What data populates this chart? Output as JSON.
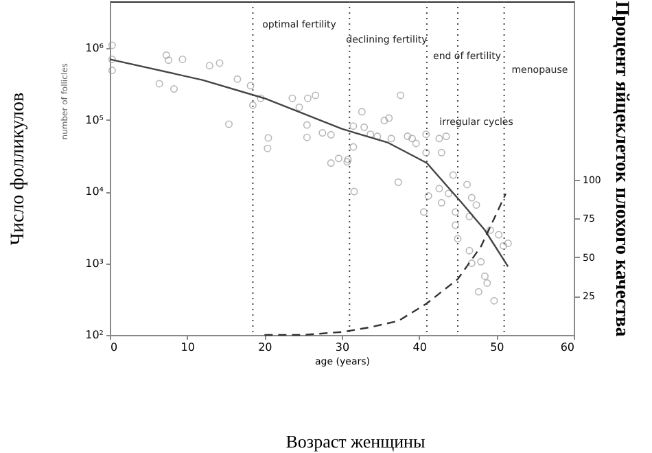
{
  "chart_data": {
    "type": "scatter",
    "xlabel": "age (years)",
    "ylabel": "Число фолликулов",
    "y2label": "Процент яйцеклеток плохого качества",
    "xlim": [
      0,
      60
    ],
    "xticks": [
      0,
      10,
      20,
      30,
      40,
      50,
      60
    ],
    "ylim": [
      100,
      4500000
    ],
    "yticks": [
      {
        "value": 100,
        "label": "10²"
      },
      {
        "value": 1000,
        "label": "10³"
      },
      {
        "value": 10000,
        "label": "10⁴"
      },
      {
        "value": 100000,
        "label": "10⁵"
      },
      {
        "value": 1000000,
        "label": "10⁶"
      }
    ],
    "y2lim": [
      0,
      215
    ],
    "y2ticks": [
      25,
      50,
      75,
      100
    ],
    "log": "y",
    "grid": false,
    "series": [
      {
        "color": "#999999",
        "marker": "circle",
        "x": [
          0.3,
          0.3,
          0.3,
          7.3,
          9.4,
          7.6,
          6.4,
          8.3,
          12.9,
          14.2,
          16.5,
          15.4,
          18.2,
          18.5,
          19.5,
          20.5,
          20.4,
          23.6,
          24.5,
          25.6,
          26.6,
          25.5,
          25.5,
          27.5,
          28.6,
          28.6,
          29.6,
          30.7,
          31.5,
          31.5,
          31.6,
          30.8,
          32.6,
          32.9,
          33.7,
          34.6,
          35.5,
          36.1,
          36.4,
          37.6,
          38.5,
          39.1,
          39.6,
          37.3,
          40.9,
          40.9,
          41.2,
          40.6,
          42.6,
          42.9,
          43.5,
          42.6,
          42.9,
          43.8,
          44.4,
          44.7,
          44.7,
          45,
          46.2,
          46.8,
          47.4,
          46.5,
          46.5,
          46.8,
          48,
          47.7,
          48.5,
          49.7,
          48.8,
          49.2,
          50.3,
          50.9,
          51.5
        ],
        "values": [
          1100000,
          700000,
          490000,
          800000,
          700000,
          680000,
          320000,
          270000,
          570000,
          620000,
          370000,
          87000,
          300000,
          160000,
          200000,
          56000,
          40000,
          200000,
          150000,
          200000,
          220000,
          85000,
          57000,
          66000,
          62000,
          25000,
          29000,
          26000,
          42000,
          82000,
          10000,
          28000,
          130000,
          79000,
          63000,
          59000,
          98000,
          106000,
          55000,
          220000,
          59000,
          55000,
          47000,
          13500,
          63000,
          35000,
          8700,
          5200,
          55000,
          35000,
          59000,
          11000,
          7000,
          9400,
          17000,
          5200,
          3400,
          2200,
          12500,
          8200,
          6500,
          4500,
          1500,
          1000,
          1050,
          400,
          660,
          300,
          530,
          2900,
          2500,
          1750,
          1900
        ]
      },
      {
        "type": "line",
        "color": "#444444",
        "marker": "none",
        "line_style": "solid",
        "x": [
          0,
          12,
          20,
          30,
          36,
          41,
          45.5,
          48.5,
          51.5
        ],
        "values": [
          700000,
          360000,
          200000,
          75000,
          48000,
          25000,
          7000,
          2900,
          900
        ]
      },
      {
        "type": "line",
        "axis": "y2",
        "color": "#333333",
        "marker": "none",
        "line_style": "dashed",
        "x": [
          20,
          25,
          30.2,
          33.7,
          37.3,
          40.9,
          45,
          48,
          49.7,
          51.2
        ],
        "values": [
          0,
          0,
          2,
          5,
          9,
          20,
          36,
          57,
          75,
          91
        ]
      }
    ],
    "ref_lines": [
      {
        "axis": "x",
        "value": 18.5,
        "color": "#444444",
        "line_style": "dotted"
      },
      {
        "axis": "x",
        "value": 31,
        "color": "#444444",
        "line_style": "dotted"
      },
      {
        "axis": "x",
        "value": 41,
        "color": "#444444",
        "line_style": "dotted"
      },
      {
        "axis": "x",
        "value": 45,
        "color": "#444444",
        "line_style": "dotted"
      },
      {
        "axis": "x",
        "value": 51,
        "color": "#444444",
        "line_style": "dotted"
      }
    ],
    "annotations": [
      "optimal fertility",
      "declining fertility",
      "end of fertility",
      "menopause",
      "irregular cycles",
      "number of follicles",
      "Возраст женщины"
    ]
  }
}
